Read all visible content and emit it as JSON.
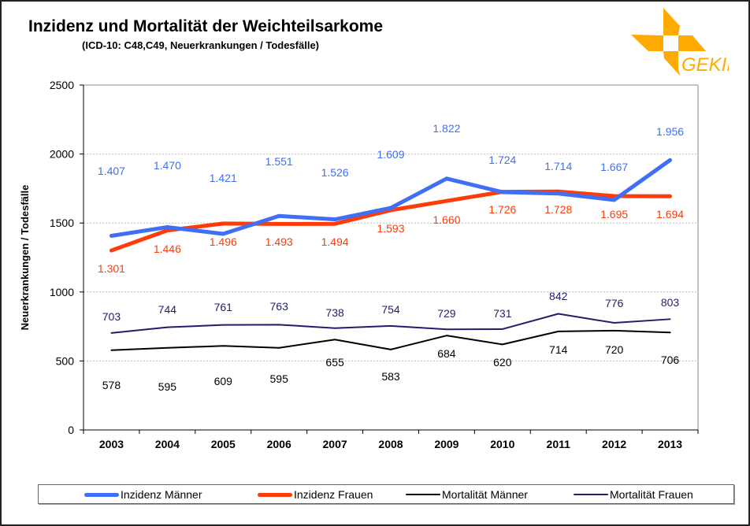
{
  "chart_data": {
    "type": "line",
    "title": "Inzidenz und Mortalität der Weichteilsarkome",
    "subtitle": "(ICD-10: C48,C49, Neuerkrankungen / Todesfälle)",
    "ylabel": "Neuerkrankungen / Todesfälle",
    "xlabel": "",
    "ylim": [
      0,
      2500
    ],
    "yticks": [
      "0",
      "500",
      "1000",
      "1500",
      "2000",
      "2500"
    ],
    "grid": "horizontal dotted",
    "legend_placement": "bottom",
    "categories": [
      "2003",
      "2004",
      "2005",
      "2006",
      "2007",
      "2008",
      "2009",
      "2010",
      "2011",
      "2012",
      "2013"
    ],
    "series": [
      {
        "name": "Inzidenz Männer",
        "color": "#3f6ff5",
        "values": [
          1407,
          1470,
          1421,
          1551,
          1526,
          1609,
          1822,
          1724,
          1714,
          1667,
          1956
        ],
        "labels": [
          "1.407",
          "1.470",
          "1.421",
          "1.551",
          "1.526",
          "1.609",
          "1.822",
          "1.724",
          "1.714",
          "1.667",
          "1.956"
        ]
      },
      {
        "name": "Inzidenz Frauen",
        "color": "#ff3b0a",
        "values": [
          1301,
          1446,
          1496,
          1493,
          1494,
          1593,
          1660,
          1726,
          1728,
          1695,
          1694
        ],
        "labels": [
          "1.301",
          "1.446",
          "1.496",
          "1.493",
          "1.494",
          "1.593",
          "1.660",
          "1.726",
          "1.728",
          "1.695",
          "1.694"
        ]
      },
      {
        "name": "Mortalität Männer",
        "color": "#000000",
        "values": [
          578,
          595,
          609,
          595,
          655,
          583,
          684,
          620,
          714,
          720,
          706
        ],
        "labels": [
          "578",
          "595",
          "609",
          "595",
          "655",
          "583",
          "684",
          "620",
          "714",
          "720",
          "706"
        ]
      },
      {
        "name": "Mortalität Frauen",
        "color": "#1f1f6b",
        "values": [
          703,
          744,
          761,
          763,
          738,
          754,
          729,
          731,
          842,
          776,
          803
        ],
        "labels": [
          "703",
          "744",
          "761",
          "763",
          "738",
          "754",
          "729",
          "731",
          "842",
          "776",
          "803"
        ]
      }
    ]
  },
  "logo": {
    "text": "GEKID",
    "color": "#ffaa00"
  }
}
